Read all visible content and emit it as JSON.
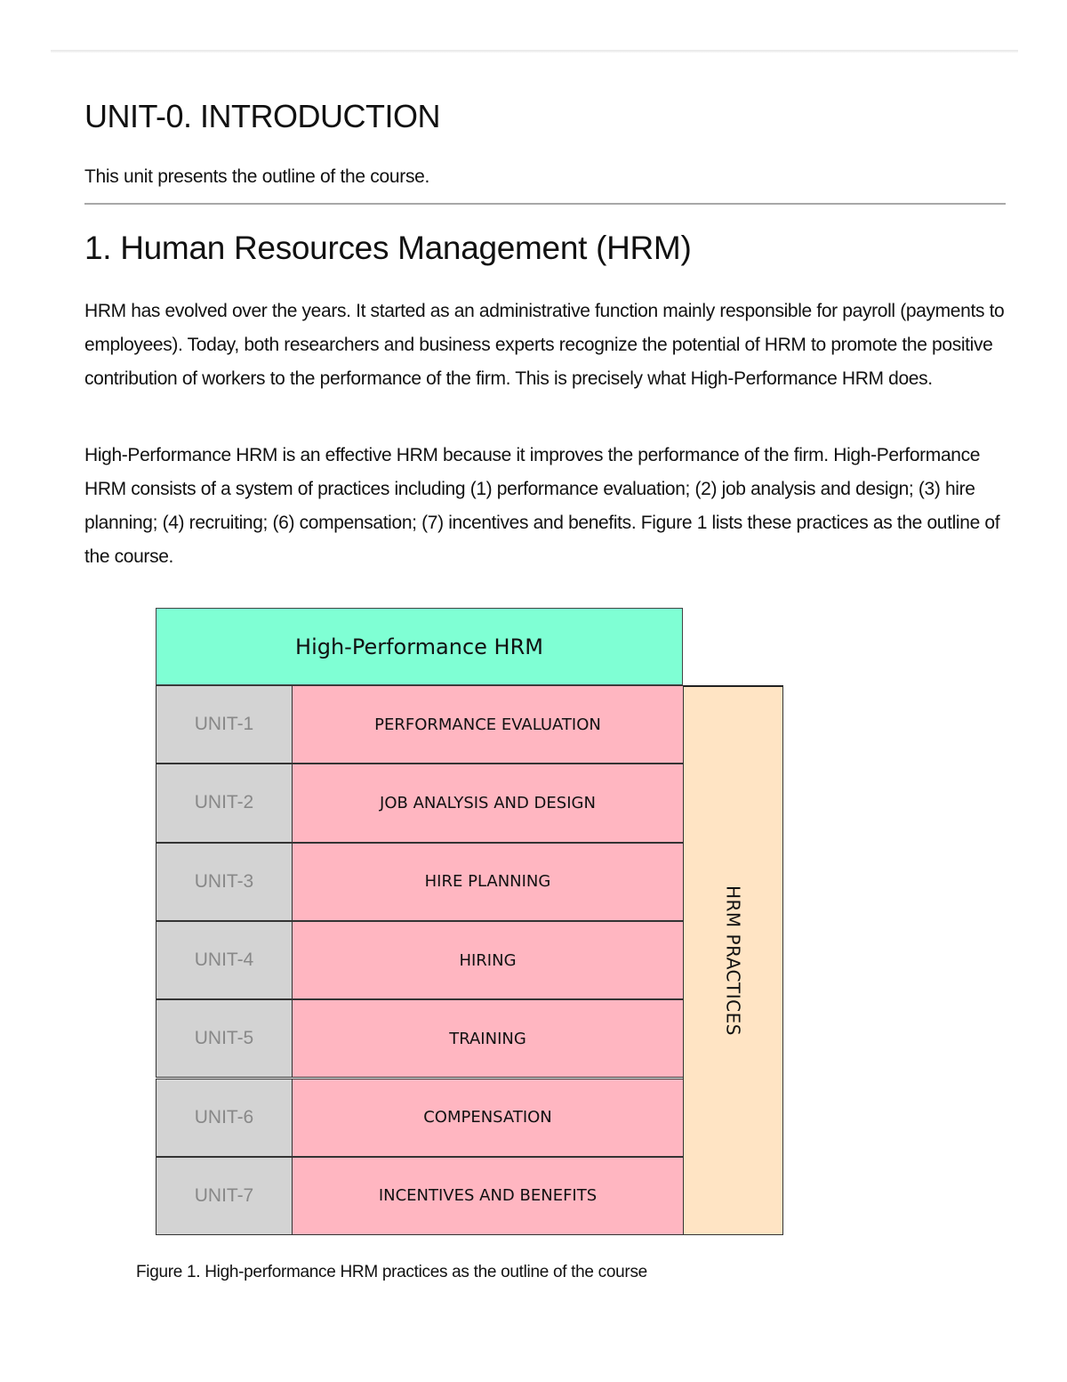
{
  "title": "UNIT-0. INTRODUCTION",
  "subtitle": "This unit presents the outline of the course.",
  "section": {
    "heading": "1. Human Resources Management (HRM)",
    "paragraphs": [
      "HRM has evolved over the years. It started as an administrative function mainly responsible for payroll (payments to employees). Today, both researchers and business experts recognize the potential of HRM to promote the positive contribution of workers to the performance of the firm. This is precisely what High-Performance HRM does.",
      "High-Performance HRM is an effective HRM because it improves the performance of the firm. High-Performance HRM consists of a system of practices including (1) performance evaluation; (2) job analysis and design; (3) hire planning; (4) recruiting; (6) compensation; (7) incentives and benefits. Figure 1 lists these practices as the outline of the course."
    ]
  },
  "figure": {
    "header": "High-Performance HRM",
    "side_label": "HRM PRACTICES",
    "rows": [
      {
        "unit": "UNIT-1",
        "practice": "PERFORMANCE EVALUATION"
      },
      {
        "unit": "UNIT-2",
        "practice": "JOB ANALYSIS AND DESIGN"
      },
      {
        "unit": "UNIT-3",
        "practice": "HIRE PLANNING"
      },
      {
        "unit": "UNIT-4",
        "practice": "HIRING"
      },
      {
        "unit": "UNIT-5",
        "practice": "TRAINING"
      },
      {
        "unit": "UNIT-6",
        "practice": "COMPENSATION"
      },
      {
        "unit": "UNIT-7",
        "practice": "INCENTIVES AND BENEFITS"
      }
    ],
    "caption": "Figure 1. High-performance HRM practices as the outline of the course",
    "colors": {
      "header": "#7fffd4",
      "unit": "#d3d3d3",
      "practice": "#ffb6c1",
      "side": "#ffe4c4"
    }
  }
}
